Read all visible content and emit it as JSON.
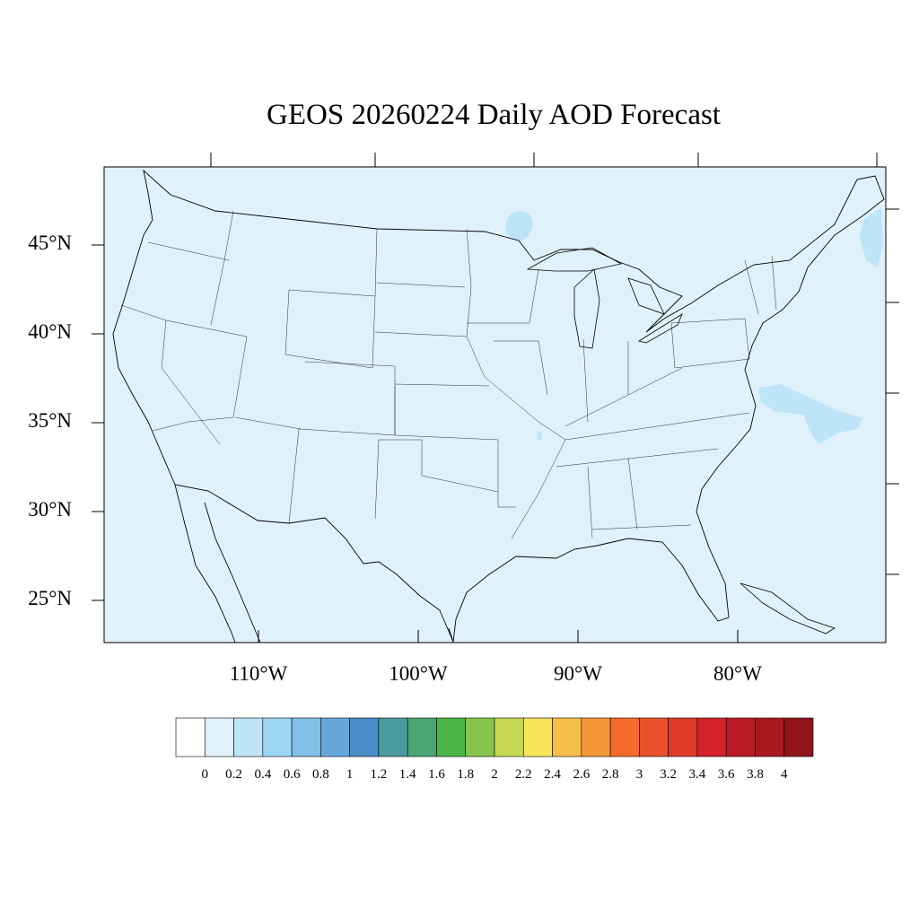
{
  "title": "GEOS 20260224 Daily AOD Forecast",
  "map": {
    "region": "Contiguous United States",
    "background_class_color": "#dff1fa",
    "plume_class_color": "#bde5f7",
    "lat_labels": [
      "45°N",
      "40°N",
      "35°N",
      "30°N",
      "25°N"
    ],
    "lon_labels": [
      "110°W",
      "100°W",
      "90°W",
      "80°W"
    ]
  },
  "colorbar": {
    "labels": [
      "0",
      "0.2",
      "0.4",
      "0.6",
      "0.8",
      "1",
      "1.2",
      "1.4",
      "1.6",
      "1.8",
      "2",
      "2.2",
      "2.4",
      "2.6",
      "2.8",
      "3",
      "3.2",
      "3.4",
      "3.6",
      "3.8",
      "4"
    ],
    "colors": [
      "#ffffff",
      "#dff1fa",
      "#bde5f7",
      "#9dd7f3",
      "#80bfe6",
      "#66a8da",
      "#4a8cc8",
      "#4a9ba0",
      "#4aa673",
      "#4ab548",
      "#86c54c",
      "#c7d855",
      "#f8e65a",
      "#f8be4a",
      "#f6963b",
      "#f36c2b",
      "#e9512a",
      "#de3a28",
      "#d4222a",
      "#bb1b24",
      "#a8191f",
      "#8f151a"
    ]
  }
}
